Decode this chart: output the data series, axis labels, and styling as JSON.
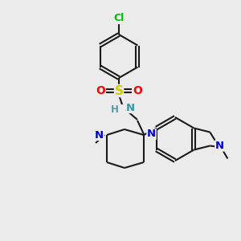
{
  "bg_color": "#ebebeb",
  "bond_color": "#1a1a1a",
  "atom_colors": {
    "N": "#0000cc",
    "NH": "#3399aa",
    "O": "#ff0000",
    "S": "#cccc00",
    "Cl": "#00bb00",
    "C": "#1a1a1a",
    "H": "#5599aa"
  },
  "figsize": [
    3.0,
    3.0
  ],
  "dpi": 100
}
